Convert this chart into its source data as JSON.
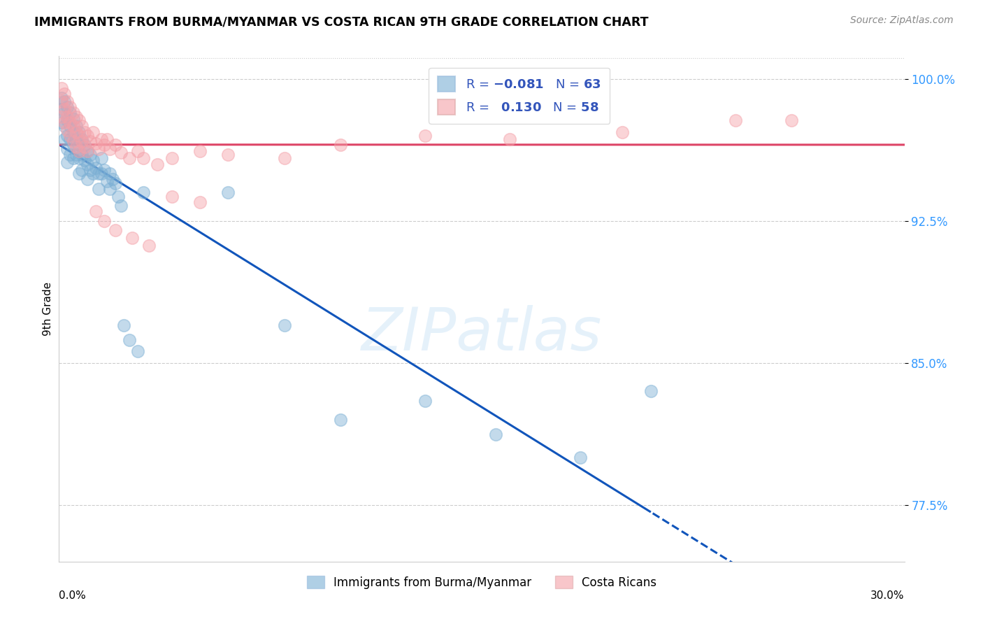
{
  "title": "IMMIGRANTS FROM BURMA/MYANMAR VS COSTA RICAN 9TH GRADE CORRELATION CHART",
  "source": "Source: ZipAtlas.com",
  "ylabel": "9th Grade",
  "yticks": [
    0.775,
    0.85,
    0.925,
    1.0
  ],
  "ytick_labels": [
    "77.5%",
    "85.0%",
    "92.5%",
    "100.0%"
  ],
  "xmin": 0.0,
  "xmax": 0.3,
  "ymin": 0.745,
  "ymax": 1.012,
  "blue_R": -0.081,
  "blue_N": 63,
  "pink_R": 0.13,
  "pink_N": 58,
  "blue_color": "#7BAFD4",
  "pink_color": "#F4A0A8",
  "blue_line_color": "#1155BB",
  "pink_line_color": "#DD4466",
  "legend_label_blue": "Immigrants from Burma/Myanmar",
  "legend_label_pink": "Costa Ricans",
  "blue_x": [
    0.001,
    0.001,
    0.001,
    0.002,
    0.002,
    0.002,
    0.002,
    0.003,
    0.003,
    0.003,
    0.003,
    0.003,
    0.004,
    0.004,
    0.004,
    0.004,
    0.005,
    0.005,
    0.005,
    0.005,
    0.006,
    0.006,
    0.006,
    0.007,
    0.007,
    0.007,
    0.007,
    0.008,
    0.008,
    0.008,
    0.009,
    0.009,
    0.01,
    0.01,
    0.01,
    0.011,
    0.011,
    0.012,
    0.012,
    0.013,
    0.014,
    0.014,
    0.015,
    0.015,
    0.016,
    0.017,
    0.018,
    0.018,
    0.019,
    0.02,
    0.021,
    0.022,
    0.023,
    0.025,
    0.028,
    0.03,
    0.06,
    0.08,
    0.1,
    0.13,
    0.155,
    0.185,
    0.21
  ],
  "blue_y": [
    0.99,
    0.984,
    0.977,
    0.988,
    0.982,
    0.975,
    0.968,
    0.985,
    0.978,
    0.97,
    0.963,
    0.956,
    0.982,
    0.975,
    0.968,
    0.96,
    0.979,
    0.972,
    0.965,
    0.958,
    0.975,
    0.968,
    0.96,
    0.972,
    0.965,
    0.958,
    0.95,
    0.968,
    0.96,
    0.952,
    0.965,
    0.957,
    0.962,
    0.955,
    0.947,
    0.96,
    0.952,
    0.957,
    0.95,
    0.953,
    0.95,
    0.942,
    0.958,
    0.95,
    0.952,
    0.946,
    0.95,
    0.942,
    0.947,
    0.945,
    0.938,
    0.933,
    0.87,
    0.862,
    0.856,
    0.94,
    0.94,
    0.87,
    0.82,
    0.83,
    0.812,
    0.8,
    0.835
  ],
  "pink_x": [
    0.001,
    0.001,
    0.001,
    0.002,
    0.002,
    0.002,
    0.003,
    0.003,
    0.003,
    0.004,
    0.004,
    0.004,
    0.005,
    0.005,
    0.005,
    0.006,
    0.006,
    0.006,
    0.007,
    0.007,
    0.007,
    0.008,
    0.008,
    0.009,
    0.009,
    0.01,
    0.01,
    0.011,
    0.012,
    0.013,
    0.014,
    0.015,
    0.016,
    0.017,
    0.018,
    0.02,
    0.022,
    0.025,
    0.028,
    0.03,
    0.035,
    0.04,
    0.05,
    0.06,
    0.08,
    0.1,
    0.13,
    0.16,
    0.2,
    0.24,
    0.013,
    0.016,
    0.02,
    0.026,
    0.032,
    0.04,
    0.05,
    0.26
  ],
  "pink_y": [
    0.995,
    0.988,
    0.98,
    0.992,
    0.984,
    0.977,
    0.988,
    0.98,
    0.973,
    0.985,
    0.977,
    0.97,
    0.982,
    0.975,
    0.967,
    0.98,
    0.972,
    0.964,
    0.978,
    0.97,
    0.962,
    0.975,
    0.967,
    0.972,
    0.964,
    0.97,
    0.962,
    0.967,
    0.972,
    0.966,
    0.963,
    0.968,
    0.965,
    0.968,
    0.963,
    0.965,
    0.961,
    0.958,
    0.962,
    0.958,
    0.955,
    0.958,
    0.962,
    0.96,
    0.958,
    0.965,
    0.97,
    0.968,
    0.972,
    0.978,
    0.93,
    0.925,
    0.92,
    0.916,
    0.912,
    0.938,
    0.935,
    0.978
  ]
}
